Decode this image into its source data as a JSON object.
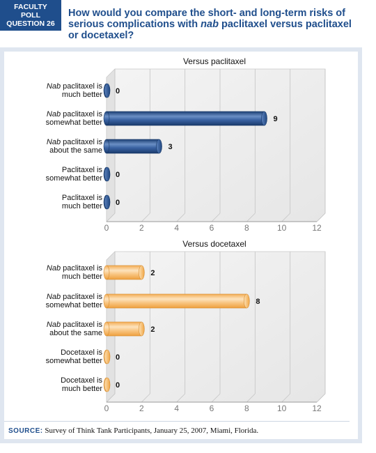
{
  "header": {
    "badge_lines": [
      "FACULTY",
      "POLL",
      "QUESTION 26"
    ],
    "question_part1": "How would you compare the short- and long-term risks of serious complications with ",
    "question_italic": "nab",
    "question_part2": " paclitaxel versus paclitaxel or docetaxel?"
  },
  "colors": {
    "navy_bar": "#2c5490",
    "orange_bar": "#f8c27a",
    "badge_bg": "#1f4e8c",
    "question_text": "#1f4e8c"
  },
  "chart_data": [
    {
      "type": "bar",
      "orientation": "horizontal",
      "title": "Versus paclitaxel",
      "categories": [
        {
          "prefix_italic": "Nab",
          "line1": " paclitaxel is",
          "line2": "much better"
        },
        {
          "prefix_italic": "Nab",
          "line1": " paclitaxel is",
          "line2": "somewhat better"
        },
        {
          "prefix_italic": "Nab",
          "line1": " paclitaxel is",
          "line2": "about the same"
        },
        {
          "prefix_italic": "",
          "line1": "Paclitaxel is",
          "line2": "somewhat better"
        },
        {
          "prefix_italic": "",
          "line1": "Paclitaxel is",
          "line2": "much better"
        }
      ],
      "values": [
        0,
        9,
        3,
        0,
        0
      ],
      "xlim": [
        0,
        12
      ],
      "xticks": [
        0,
        2,
        4,
        6,
        8,
        10,
        12
      ],
      "grid": true,
      "color": "navy"
    },
    {
      "type": "bar",
      "orientation": "horizontal",
      "title": "Versus docetaxel",
      "categories": [
        {
          "prefix_italic": "Nab",
          "line1": " paclitaxel is",
          "line2": "much better"
        },
        {
          "prefix_italic": "Nab",
          "line1": " paclitaxel is",
          "line2": "somewhat better"
        },
        {
          "prefix_italic": "Nab",
          "line1": " paclitaxel is",
          "line2": "about the same"
        },
        {
          "prefix_italic": "",
          "line1": "Docetaxel is",
          "line2": "somewhat better"
        },
        {
          "prefix_italic": "",
          "line1": "Docetaxel is",
          "line2": "much better"
        }
      ],
      "values": [
        2,
        8,
        2,
        0,
        0
      ],
      "xlim": [
        0,
        12
      ],
      "xticks": [
        0,
        2,
        4,
        6,
        8,
        10,
        12
      ],
      "grid": true,
      "color": "orange"
    }
  ],
  "source": {
    "label": "SOURCE:",
    "text": "Survey of Think Tank Participants, January 25, 2007, Miami, Florida."
  }
}
